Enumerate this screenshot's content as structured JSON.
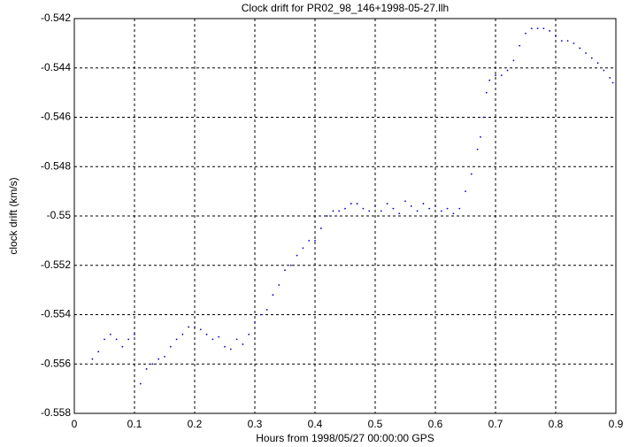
{
  "chart_data": {
    "type": "scatter",
    "title": "Clock drift for PR02_98_146+1998-05-27.llh",
    "x_label": "Hours from 1998/05/27 00:00:00 GPS",
    "y_label": "clock drift (km/s)",
    "color": "#0000cc",
    "grid": true,
    "xlim": [
      0,
      0.9
    ],
    "xticks": [
      0,
      0.1,
      0.2,
      0.3,
      0.4,
      0.5,
      0.6,
      0.7,
      0.8,
      0.9
    ],
    "ylim": [
      -0.558,
      -0.542
    ],
    "yticks": [
      -0.558,
      -0.556,
      -0.554,
      -0.552,
      -0.55,
      -0.548,
      -0.546,
      -0.544,
      -0.542
    ],
    "x": [
      0.03,
      0.04,
      0.05,
      0.06,
      0.07,
      0.08,
      0.09,
      0.1,
      0.11,
      0.12,
      0.13,
      0.14,
      0.15,
      0.16,
      0.17,
      0.18,
      0.19,
      0.2,
      0.21,
      0.22,
      0.23,
      0.24,
      0.25,
      0.26,
      0.27,
      0.28,
      0.29,
      0.3,
      0.31,
      0.32,
      0.33,
      0.34,
      0.35,
      0.36,
      0.37,
      0.38,
      0.39,
      0.4,
      0.41,
      0.42,
      0.43,
      0.44,
      0.45,
      0.46,
      0.47,
      0.48,
      0.49,
      0.5,
      0.51,
      0.52,
      0.53,
      0.54,
      0.55,
      0.56,
      0.57,
      0.58,
      0.59,
      0.6,
      0.61,
      0.62,
      0.63,
      0.64,
      0.65,
      0.66,
      0.67,
      0.675,
      0.68,
      0.685,
      0.69,
      0.7,
      0.71,
      0.72,
      0.73,
      0.74,
      0.75,
      0.76,
      0.77,
      0.78,
      0.79,
      0.8,
      0.81,
      0.82,
      0.83,
      0.84,
      0.85,
      0.86,
      0.87,
      0.88,
      0.89,
      0.895
    ],
    "y": [
      -0.5558,
      -0.5555,
      -0.555,
      -0.5548,
      -0.555,
      -0.5553,
      -0.555,
      -0.5548,
      -0.5568,
      -0.5562,
      -0.556,
      -0.5558,
      -0.5557,
      -0.5553,
      -0.555,
      -0.5548,
      -0.5545,
      -0.5545,
      -0.5546,
      -0.5548,
      -0.555,
      -0.5549,
      -0.5553,
      -0.5554,
      -0.555,
      -0.5552,
      -0.5548,
      -0.5543,
      -0.554,
      -0.5538,
      -0.5532,
      -0.5528,
      -0.5522,
      -0.552,
      -0.5516,
      -0.5513,
      -0.551,
      -0.551,
      -0.5505,
      -0.55,
      -0.5498,
      -0.5498,
      -0.5497,
      -0.5495,
      -0.5495,
      -0.5497,
      -0.5498,
      -0.5496,
      -0.5498,
      -0.5495,
      -0.5497,
      -0.5499,
      -0.5494,
      -0.5496,
      -0.5498,
      -0.5495,
      -0.5497,
      -0.5496,
      -0.5498,
      -0.5497,
      -0.5499,
      -0.5497,
      -0.549,
      -0.5483,
      -0.5473,
      -0.5468,
      -0.546,
      -0.545,
      -0.5445,
      -0.5443,
      -0.5443,
      -0.5441,
      -0.5437,
      -0.5431,
      -0.5426,
      -0.5424,
      -0.5424,
      -0.5424,
      -0.5425,
      -0.5427,
      -0.5429,
      -0.5429,
      -0.543,
      -0.5432,
      -0.5434,
      -0.5436,
      -0.5438,
      -0.5441,
      -0.5444,
      -0.5446
    ]
  }
}
